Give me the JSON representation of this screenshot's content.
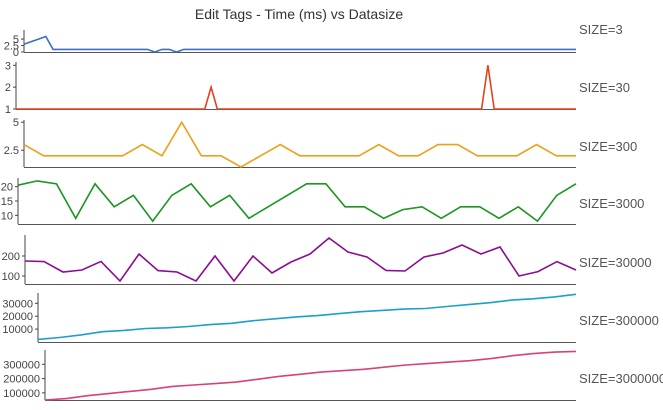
{
  "title": "Edit Tags - Time (ms) vs Datasize",
  "chart_data": [
    {
      "type": "line",
      "label": "SIZE=3",
      "color": "#3b6fc4",
      "yticks": [
        0,
        2.5,
        5
      ],
      "ylim": [
        0,
        8.5
      ],
      "values": [
        3,
        4,
        5,
        6,
        1,
        1,
        1,
        1,
        1,
        1,
        1,
        1,
        1,
        1,
        1,
        1,
        1,
        1,
        0,
        1,
        1,
        0,
        1,
        1,
        1,
        1,
        1,
        1,
        1,
        1,
        1,
        1,
        1,
        1,
        1,
        1,
        1,
        1,
        1,
        1,
        1,
        1,
        1,
        1,
        1,
        1,
        1,
        1,
        1,
        1,
        1,
        1,
        1,
        1,
        1,
        1,
        1,
        1,
        1,
        1,
        1,
        1,
        1,
        1,
        1,
        1,
        1,
        1,
        1,
        1,
        1,
        1,
        1,
        1,
        1,
        1,
        1
      ]
    },
    {
      "type": "line",
      "label": "SIZE=30",
      "color": "#e0441c",
      "yticks": [
        1,
        2,
        3
      ],
      "ylim": [
        1,
        3.15
      ],
      "values": [
        1,
        1,
        1,
        1,
        1,
        1,
        1,
        1,
        1,
        1,
        1,
        1,
        1,
        1,
        1,
        1,
        1,
        1,
        1,
        1,
        1,
        1,
        1,
        1,
        1,
        1,
        1,
        1,
        1,
        1,
        1,
        2,
        1,
        1,
        1,
        1,
        1,
        1,
        1,
        1,
        1,
        1,
        1,
        1,
        1,
        1,
        1,
        1,
        1,
        1,
        1,
        1,
        1,
        1,
        1,
        1,
        1,
        1,
        1,
        1,
        1,
        1,
        1,
        1,
        1,
        1,
        1,
        1,
        1,
        1,
        1,
        1,
        1,
        1,
        1,
        3,
        1,
        1,
        1,
        1,
        1,
        1,
        1,
        1,
        1,
        1,
        1,
        1,
        1,
        1
      ]
    },
    {
      "type": "line",
      "label": "SIZE=300",
      "color": "#f29e15",
      "yticks": [
        2.5,
        5
      ],
      "ylim": [
        1,
        5.2
      ],
      "values": [
        3,
        2,
        2,
        2,
        2,
        2,
        3,
        2,
        5,
        2,
        2,
        1,
        2,
        3,
        2,
        2,
        2,
        2,
        3,
        2,
        2,
        3,
        3,
        2,
        2,
        2,
        3,
        2,
        2
      ]
    },
    {
      "type": "line",
      "label": "SIZE=3000",
      "color": "#1b9620",
      "yticks": [
        10,
        15,
        20
      ],
      "ylim": [
        7,
        23
      ],
      "values": [
        20.5,
        22,
        21,
        9,
        21,
        13,
        17,
        8,
        17,
        21,
        13,
        17,
        9,
        13,
        17,
        21,
        21,
        13,
        13,
        9,
        12,
        13,
        9,
        13,
        13,
        9,
        13,
        8,
        17,
        21
      ]
    },
    {
      "type": "line",
      "label": "SIZE=30000",
      "color": "#8b0d92",
      "yticks": [
        100,
        200
      ],
      "ylim": [
        60,
        305
      ],
      "values": [
        175,
        172,
        120,
        130,
        173,
        75,
        210,
        127,
        120,
        75,
        200,
        75,
        200,
        115,
        170,
        210,
        290,
        220,
        195,
        128,
        125,
        195,
        215,
        255,
        210,
        245,
        100,
        122,
        172,
        130
      ]
    },
    {
      "type": "line",
      "label": "SIZE=300000",
      "color": "#1c9ecf",
      "yticks": [
        10000,
        20000,
        30000
      ],
      "ylim": [
        0,
        38000
      ],
      "values": [
        2000,
        3500,
        5500,
        8000,
        9000,
        10500,
        11000,
        12000,
        13500,
        14500,
        16500,
        18000,
        19500,
        20500,
        22000,
        23500,
        24500,
        25500,
        26000,
        27500,
        29000,
        30500,
        32500,
        33500,
        35000,
        37000
      ]
    },
    {
      "type": "line",
      "label": "SIZE=3000000",
      "color": "#d8417a",
      "yticks": [
        100000,
        200000,
        300000
      ],
      "ylim": [
        50000,
        400000
      ],
      "values": [
        50000,
        60000,
        80000,
        95000,
        110000,
        125000,
        145000,
        155000,
        165000,
        175000,
        195000,
        215000,
        230000,
        245000,
        255000,
        265000,
        280000,
        295000,
        305000,
        315000,
        325000,
        340000,
        360000,
        375000,
        385000,
        390000
      ]
    }
  ]
}
